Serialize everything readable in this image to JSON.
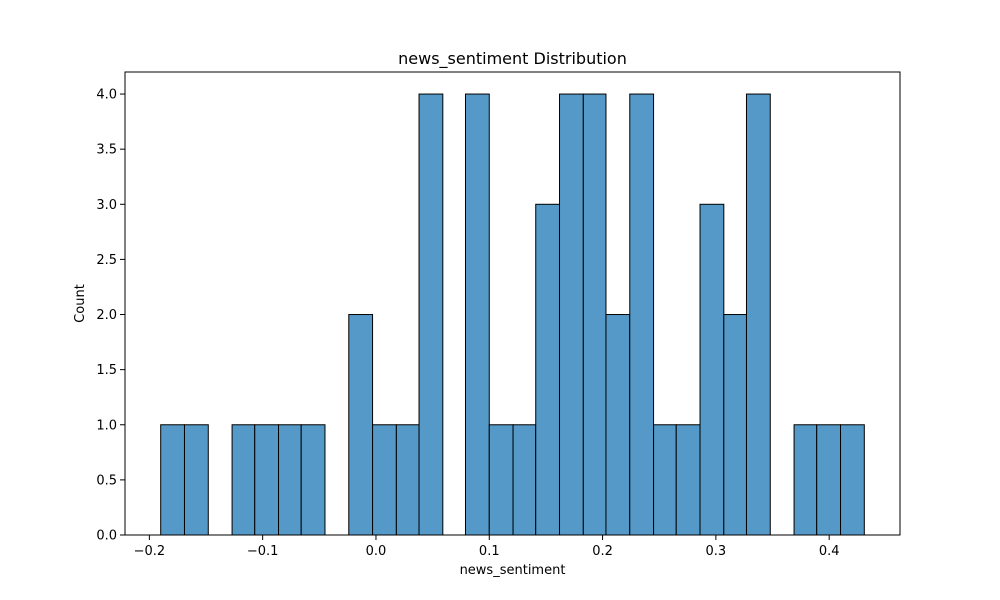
{
  "chart_data": {
    "type": "bar",
    "title": "news_sentiment Distribution",
    "xlabel": "news_sentiment",
    "ylabel": "Count",
    "xlim": [
      -0.2215,
      0.4625
    ],
    "ylim": [
      0,
      4.2
    ],
    "bar_color": "#5499c7",
    "edge_color": "#000000",
    "grid": false,
    "bins": [
      {
        "x0": -0.19,
        "x1": -0.169,
        "count": 1
      },
      {
        "x0": -0.169,
        "x1": -0.148,
        "count": 1
      },
      {
        "x0": -0.148,
        "x1": -0.127,
        "count": 0
      },
      {
        "x0": -0.127,
        "x1": -0.107,
        "count": 1
      },
      {
        "x0": -0.107,
        "x1": -0.086,
        "count": 1
      },
      {
        "x0": -0.086,
        "x1": -0.066,
        "count": 1
      },
      {
        "x0": -0.066,
        "x1": -0.045,
        "count": 1
      },
      {
        "x0": -0.045,
        "x1": -0.024,
        "count": 0
      },
      {
        "x0": -0.024,
        "x1": -0.003,
        "count": 2
      },
      {
        "x0": -0.003,
        "x1": 0.018,
        "count": 1
      },
      {
        "x0": 0.018,
        "x1": 0.038,
        "count": 1
      },
      {
        "x0": 0.038,
        "x1": 0.059,
        "count": 4
      },
      {
        "x0": 0.059,
        "x1": 0.079,
        "count": 0
      },
      {
        "x0": 0.079,
        "x1": 0.1,
        "count": 4
      },
      {
        "x0": 0.1,
        "x1": 0.121,
        "count": 1
      },
      {
        "x0": 0.121,
        "x1": 0.141,
        "count": 1
      },
      {
        "x0": 0.141,
        "x1": 0.162,
        "count": 3
      },
      {
        "x0": 0.162,
        "x1": 0.183,
        "count": 4
      },
      {
        "x0": 0.183,
        "x1": 0.203,
        "count": 4
      },
      {
        "x0": 0.203,
        "x1": 0.224,
        "count": 2
      },
      {
        "x0": 0.224,
        "x1": 0.245,
        "count": 4
      },
      {
        "x0": 0.245,
        "x1": 0.265,
        "count": 1
      },
      {
        "x0": 0.265,
        "x1": 0.286,
        "count": 1
      },
      {
        "x0": 0.286,
        "x1": 0.307,
        "count": 3
      },
      {
        "x0": 0.307,
        "x1": 0.327,
        "count": 2
      },
      {
        "x0": 0.327,
        "x1": 0.348,
        "count": 4
      },
      {
        "x0": 0.348,
        "x1": 0.369,
        "count": 0
      },
      {
        "x0": 0.369,
        "x1": 0.389,
        "count": 1
      },
      {
        "x0": 0.389,
        "x1": 0.41,
        "count": 1
      },
      {
        "x0": 0.41,
        "x1": 0.431,
        "count": 1
      }
    ],
    "x_ticks": [
      {
        "value": -0.2,
        "label": "−0.2"
      },
      {
        "value": -0.1,
        "label": "−0.1"
      },
      {
        "value": 0.0,
        "label": "0.0"
      },
      {
        "value": 0.1,
        "label": "0.1"
      },
      {
        "value": 0.2,
        "label": "0.2"
      },
      {
        "value": 0.3,
        "label": "0.3"
      },
      {
        "value": 0.4,
        "label": "0.4"
      }
    ],
    "y_ticks": [
      {
        "value": 0.0,
        "label": "0.0"
      },
      {
        "value": 0.5,
        "label": "0.5"
      },
      {
        "value": 1.0,
        "label": "1.0"
      },
      {
        "value": 1.5,
        "label": "1.5"
      },
      {
        "value": 2.0,
        "label": "2.0"
      },
      {
        "value": 2.5,
        "label": "2.5"
      },
      {
        "value": 3.0,
        "label": "3.0"
      },
      {
        "value": 3.5,
        "label": "3.5"
      },
      {
        "value": 4.0,
        "label": "4.0"
      }
    ]
  }
}
